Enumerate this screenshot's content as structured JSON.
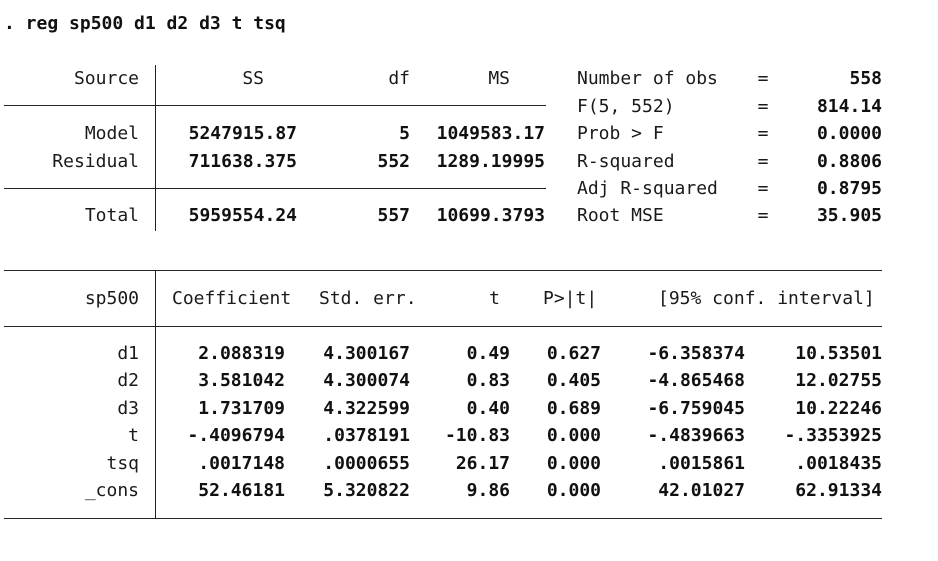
{
  "command": ". reg sp500 d1 d2 d3 t tsq",
  "anova": {
    "headers": {
      "source": "Source",
      "ss": "SS",
      "df": "df",
      "ms": "MS"
    },
    "rows": [
      {
        "source": "Model",
        "ss": "5247915.87",
        "df": "5",
        "ms": "1049583.17"
      },
      {
        "source": "Residual",
        "ss": "711638.375",
        "df": "552",
        "ms": "1289.19995"
      }
    ],
    "total": {
      "source": "Total",
      "ss": "5959554.24",
      "df": "557",
      "ms": "10699.3793"
    }
  },
  "stats": [
    {
      "label": "Number of obs",
      "eq": "=",
      "value": "558"
    },
    {
      "label": "F(5, 552)",
      "eq": "=",
      "value": "814.14"
    },
    {
      "label": "Prob > F",
      "eq": "=",
      "value": "0.0000"
    },
    {
      "label": "R-squared",
      "eq": "=",
      "value": "0.8806"
    },
    {
      "label": "Adj R-squared",
      "eq": "=",
      "value": "0.8795"
    },
    {
      "label": "Root MSE",
      "eq": "=",
      "value": "35.905"
    }
  ],
  "coef": {
    "headers": {
      "var": "sp500",
      "coef": "Coefficient",
      "se": "Std. err.",
      "t": "t",
      "p": "P>|t|",
      "ci": "[95% conf. interval]"
    },
    "rows": [
      {
        "var": "d1",
        "coef": "2.088319",
        "se": "4.300167",
        "t": "0.49",
        "p": "0.627",
        "lo": "-6.358374",
        "hi": "10.53501"
      },
      {
        "var": "d2",
        "coef": "3.581042",
        "se": "4.300074",
        "t": "0.83",
        "p": "0.405",
        "lo": "-4.865468",
        "hi": "12.02755"
      },
      {
        "var": "d3",
        "coef": "1.731709",
        "se": "4.322599",
        "t": "0.40",
        "p": "0.689",
        "lo": "-6.759045",
        "hi": "10.22246"
      },
      {
        "var": "t",
        "coef": "-.4096794",
        "se": ".0378191",
        "t": "-10.83",
        "p": "0.000",
        "lo": "-.4839663",
        "hi": "-.3353925"
      },
      {
        "var": "tsq",
        "coef": ".0017148",
        "se": ".0000655",
        "t": "26.17",
        "p": "0.000",
        "lo": ".0015861",
        "hi": ".0018435"
      },
      {
        "var": "_cons",
        "coef": "52.46181",
        "se": "5.320822",
        "t": "9.86",
        "p": "0.000",
        "lo": "42.01027",
        "hi": "62.91334"
      }
    ]
  }
}
